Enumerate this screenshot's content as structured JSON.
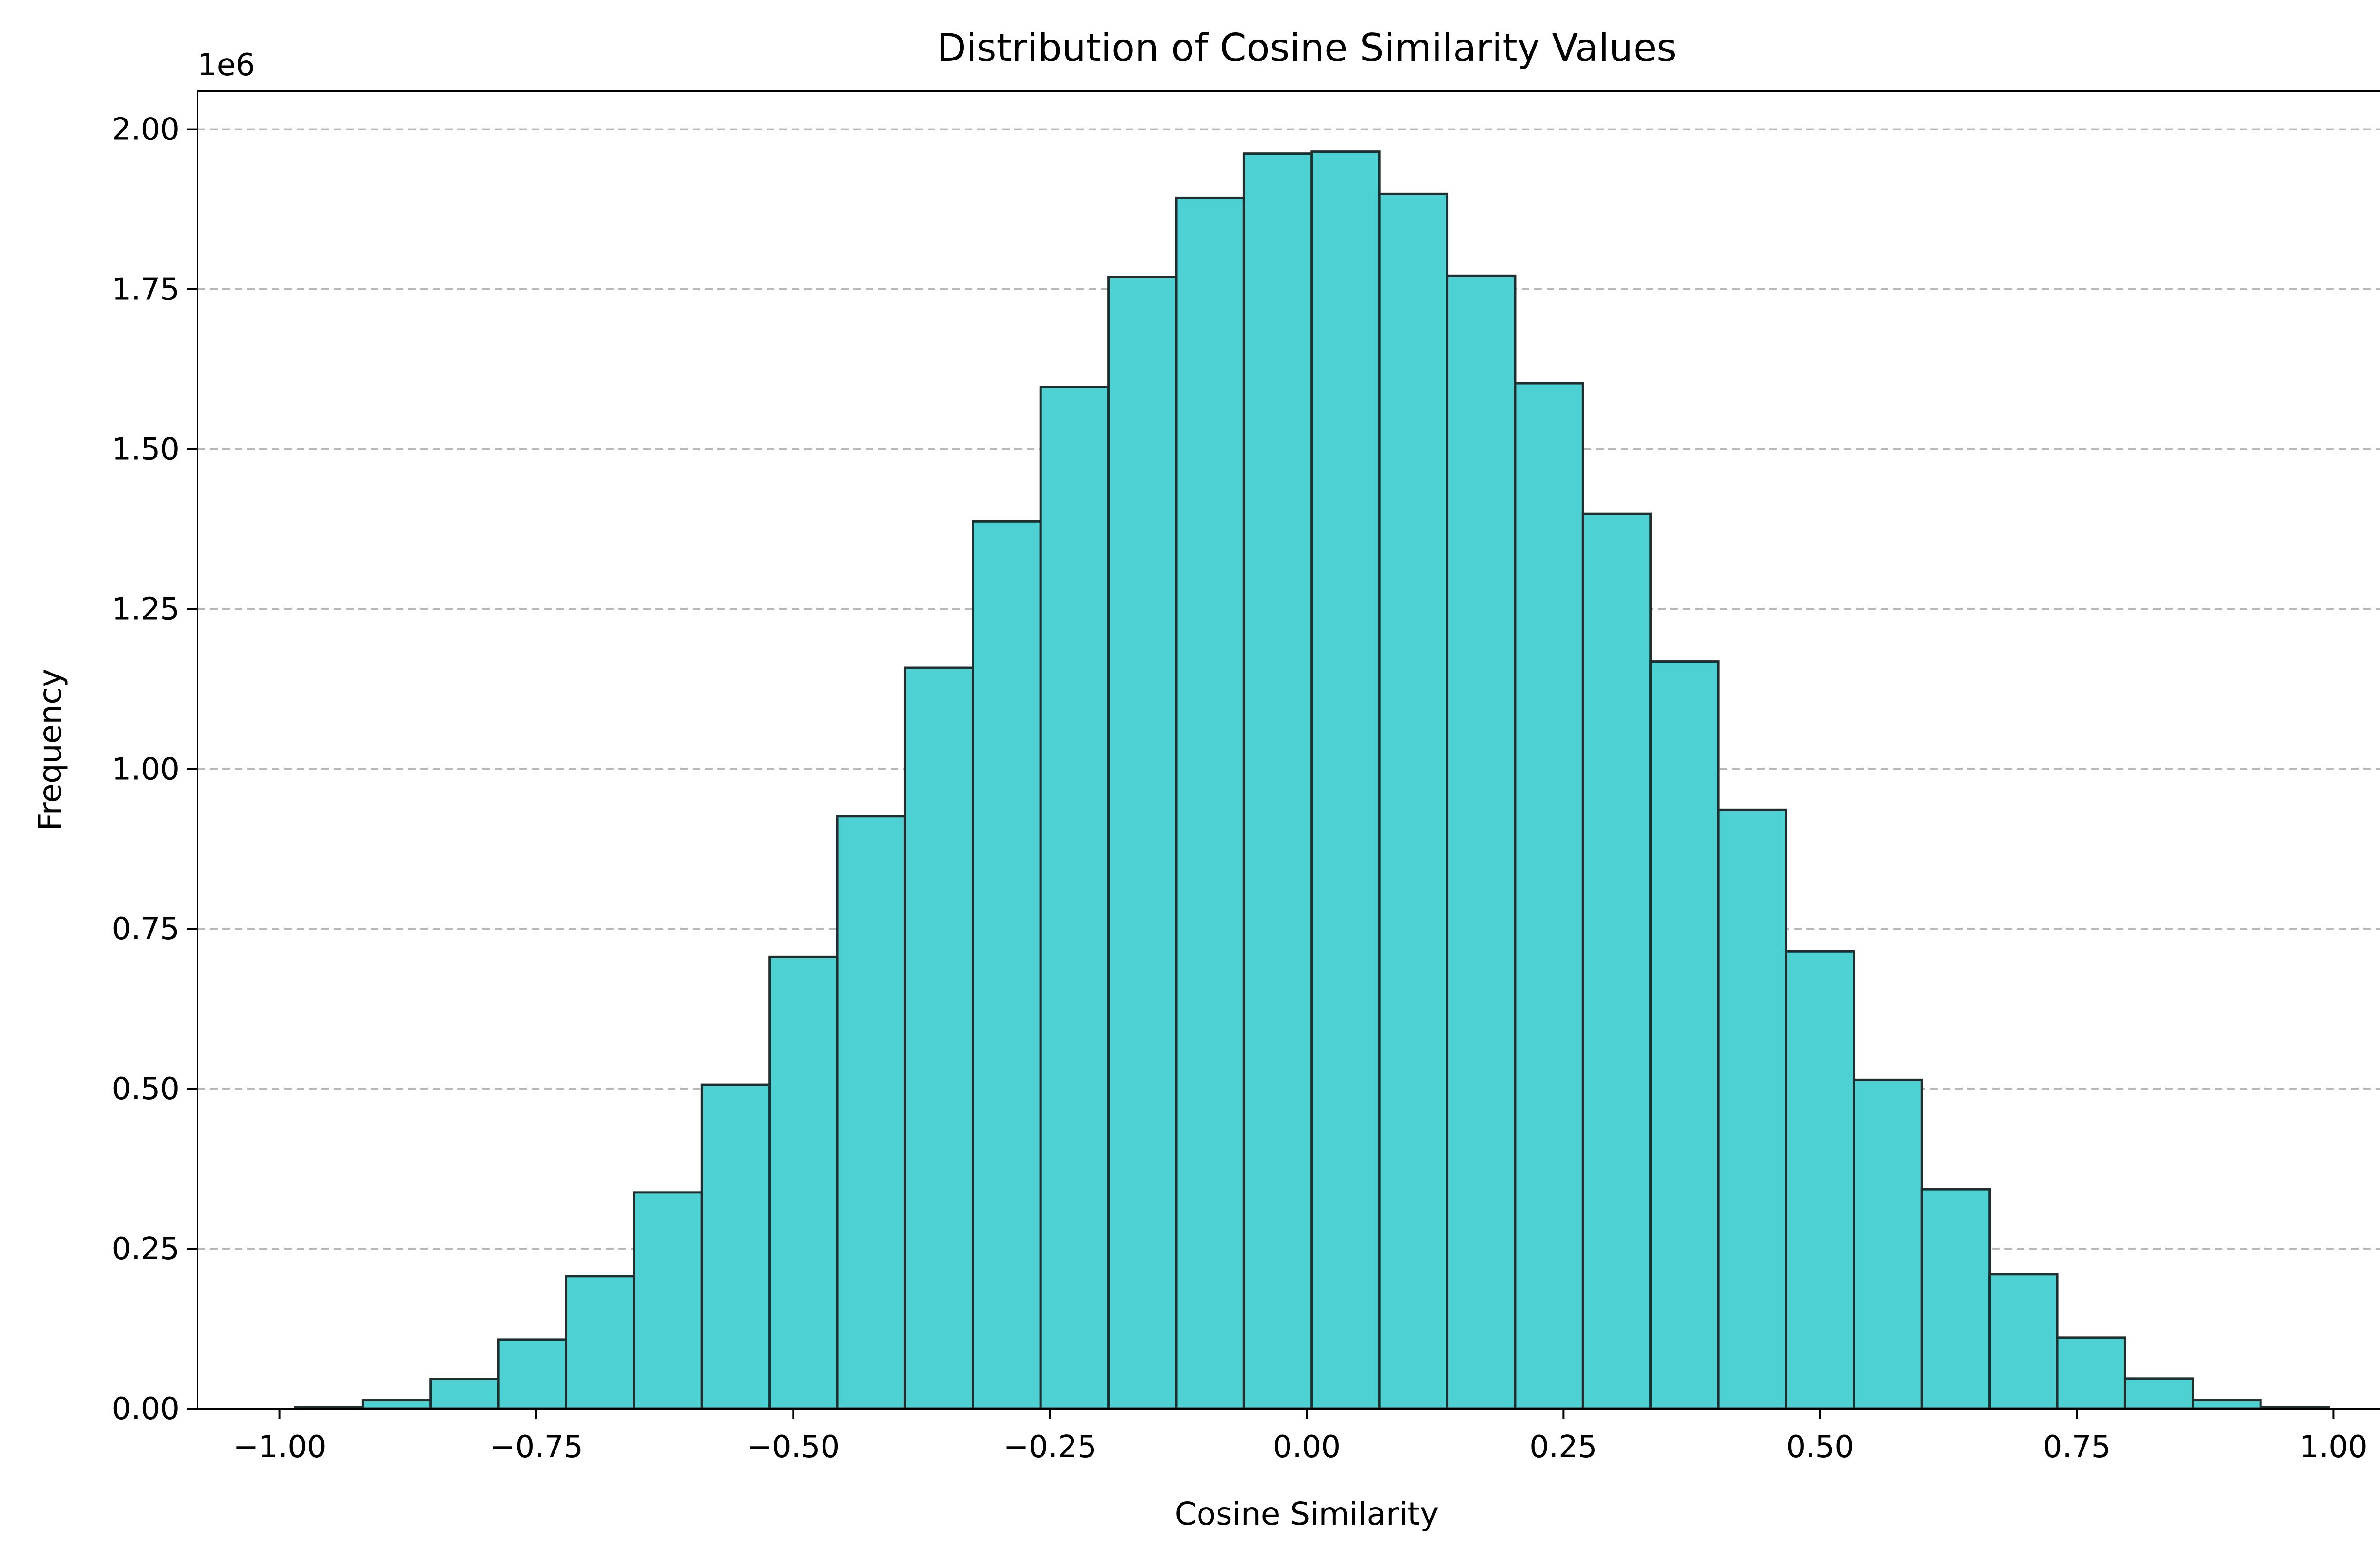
{
  "chart_data": {
    "type": "bar",
    "title": "Distribution of Cosine Similarity Values",
    "xlabel": "Cosine Similarity",
    "ylabel": "Frequency",
    "y_offset_label": "1e6",
    "xlim": [
      -1.08,
      1.08
    ],
    "ylim": [
      0,
      2.06
    ],
    "y_scale_factor": 1000000,
    "x_ticks": [
      -1.0,
      -0.75,
      -0.5,
      -0.25,
      0.0,
      0.25,
      0.5,
      0.75,
      1.0
    ],
    "x_tick_labels": [
      "−1.00",
      "−0.75",
      "−0.50",
      "−0.25",
      "0.00",
      "0.25",
      "0.50",
      "0.75",
      "1.00"
    ],
    "y_ticks": [
      0.0,
      0.25,
      0.5,
      0.75,
      1.0,
      1.25,
      1.5,
      1.75,
      2.0
    ],
    "y_tick_labels": [
      "0.00",
      "0.25",
      "0.50",
      "0.75",
      "1.00",
      "1.25",
      "1.50",
      "1.75",
      "2.00"
    ],
    "grid": {
      "axis": "y",
      "style": "dashed"
    },
    "bar_color": "#4ed1d3",
    "edge_color": "#1f2f2f",
    "bin_edges": [
      -0.985,
      -0.919,
      -0.853,
      -0.787,
      -0.721,
      -0.655,
      -0.589,
      -0.523,
      -0.457,
      -0.391,
      -0.325,
      -0.259,
      -0.193,
      -0.127,
      -0.061,
      0.005,
      0.071,
      0.137,
      0.203,
      0.269,
      0.335,
      0.401,
      0.467,
      0.533,
      0.599,
      0.665,
      0.731,
      0.797,
      0.863,
      0.929,
      0.995
    ],
    "values": [
      0.002,
      0.013,
      0.046,
      0.108,
      0.207,
      0.338,
      0.506,
      0.706,
      0.926,
      1.158,
      1.387,
      1.597,
      1.769,
      1.893,
      1.962,
      1.965,
      1.899,
      1.771,
      1.603,
      1.399,
      1.168,
      0.936,
      0.715,
      0.514,
      0.343,
      0.21,
      0.111,
      0.047,
      0.013,
      0.002
    ]
  }
}
